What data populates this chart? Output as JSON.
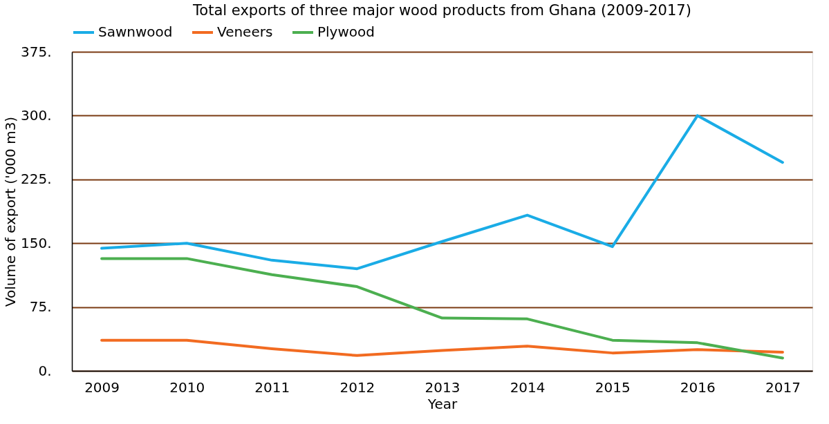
{
  "chart_data": {
    "type": "line",
    "title": "Total exports of three major wood products from Ghana (2009-2017)",
    "xlabel": "Year",
    "ylabel": "Volume  of export ('000 m3)",
    "categories": [
      "2009",
      "2010",
      "2011",
      "2012",
      "2013",
      "2014",
      "2015",
      "2016",
      "2017"
    ],
    "series": [
      {
        "name": "Sawnwood",
        "color": "#1aace6",
        "values": [
          144,
          150,
          130,
          120,
          152,
          183,
          146,
          300,
          245
        ]
      },
      {
        "name": "Veneers",
        "color": "#f26b21",
        "values": [
          36,
          36,
          26,
          18,
          24,
          29,
          21,
          25,
          22
        ]
      },
      {
        "name": "Plywood",
        "color": "#4caf50",
        "values": [
          132,
          132,
          113,
          99,
          62,
          61,
          36,
          33,
          15
        ]
      }
    ],
    "ylim": [
      0,
      375
    ],
    "yticks": [
      {
        "value": 0,
        "label": "0."
      },
      {
        "value": 75,
        "label": "75."
      },
      {
        "value": 150,
        "label": "150."
      },
      {
        "value": 225,
        "label": "225."
      },
      {
        "value": 300,
        "label": "300."
      },
      {
        "value": 375,
        "label": "375."
      }
    ],
    "grid": "y",
    "legend": "top",
    "marker": "none",
    "line_style": "solid"
  }
}
